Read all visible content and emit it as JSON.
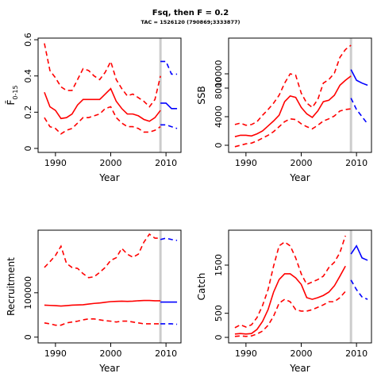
{
  "title": "Fsq, then F = 0.2",
  "subtitle": "TAC = 1526120 (790869;3333877)",
  "chart_data": [
    {
      "type": "line",
      "xlabel": "Year",
      "ylabel": "F̄",
      "ylabel_sub": "0-15",
      "xlim": [
        1986.86,
        2012.71
      ],
      "xticks": [
        1990,
        2000,
        2010
      ],
      "ylim": [
        -0.022,
        0.609
      ],
      "yticks": [
        0.0,
        0.2,
        0.4,
        0.6
      ],
      "vline": 2009,
      "vline_color": "#cccccc",
      "series": [
        {
          "color": "#ff0000",
          "linestyle": "solid",
          "x": [
            1988,
            1989,
            1990,
            1991,
            1992,
            1993,
            1994,
            1995,
            1996,
            1997,
            1998,
            1999,
            2000,
            2001,
            2002,
            2003,
            2004,
            2005,
            2006,
            2007,
            2008,
            2009
          ],
          "values": [
            0.31,
            0.23,
            0.21,
            0.165,
            0.17,
            0.19,
            0.24,
            0.27,
            0.27,
            0.27,
            0.27,
            0.3,
            0.33,
            0.26,
            0.22,
            0.19,
            0.19,
            0.18,
            0.16,
            0.15,
            0.17,
            0.21
          ]
        },
        {
          "color": "#ff0000",
          "linestyle": "dashed",
          "x": [
            1988,
            1989,
            1990,
            1991,
            1992,
            1993,
            1994,
            1995,
            1996,
            1997,
            1998,
            1999,
            2000,
            2001,
            2002,
            2003,
            2004,
            2005,
            2006,
            2007,
            2008,
            2009
          ],
          "values": [
            0.58,
            0.43,
            0.39,
            0.34,
            0.32,
            0.32,
            0.38,
            0.44,
            0.43,
            0.4,
            0.38,
            0.42,
            0.48,
            0.38,
            0.33,
            0.29,
            0.3,
            0.28,
            0.26,
            0.23,
            0.27,
            0.4
          ]
        },
        {
          "color": "#ff0000",
          "linestyle": "dashed",
          "x": [
            1988,
            1989,
            1990,
            1991,
            1992,
            1993,
            1994,
            1995,
            1996,
            1997,
            1998,
            1999,
            2000,
            2001,
            2002,
            2003,
            2004,
            2005,
            2006,
            2007,
            2008,
            2009
          ],
          "values": [
            0.17,
            0.12,
            0.11,
            0.08,
            0.1,
            0.11,
            0.14,
            0.17,
            0.17,
            0.18,
            0.19,
            0.22,
            0.23,
            0.17,
            0.14,
            0.12,
            0.12,
            0.11,
            0.09,
            0.09,
            0.1,
            0.12
          ]
        },
        {
          "color": "#0000ff",
          "linestyle": "solid",
          "x": [
            2009,
            2010,
            2011,
            2012
          ],
          "values": [
            0.25,
            0.25,
            0.22,
            0.22
          ]
        },
        {
          "color": "#0000ff",
          "linestyle": "dashed",
          "x": [
            2009,
            2010,
            2011,
            2012
          ],
          "values": [
            0.48,
            0.48,
            0.41,
            0.41
          ]
        },
        {
          "color": "#0000ff",
          "linestyle": "dashed",
          "x": [
            2009,
            2010,
            2011,
            2012
          ],
          "values": [
            0.13,
            0.13,
            0.12,
            0.11
          ]
        }
      ]
    },
    {
      "type": "line",
      "xlabel": "Year",
      "ylabel": "SSB",
      "xlim": [
        1986.86,
        2012.71
      ],
      "xticks": [
        1990,
        2000,
        2010
      ],
      "ylim": [
        -1000,
        15000
      ],
      "yticks": [
        0,
        4000,
        8000,
        10000
      ],
      "vline": 2009,
      "vline_color": "#cccccc",
      "series": [
        {
          "color": "#ff0000",
          "linestyle": "solid",
          "x": [
            1988,
            1989,
            1990,
            1991,
            1992,
            1993,
            1994,
            1995,
            1996,
            1997,
            1998,
            1999,
            2000,
            2001,
            2002,
            2003,
            2004,
            2005,
            2006,
            2007,
            2008,
            2009
          ],
          "values": [
            1200,
            1400,
            1400,
            1300,
            1600,
            2000,
            2700,
            3400,
            4200,
            6100,
            6900,
            6700,
            5300,
            4400,
            3900,
            4800,
            6100,
            6300,
            7000,
            8400,
            9100,
            9700
          ]
        },
        {
          "color": "#ff0000",
          "linestyle": "dashed",
          "x": [
            1988,
            1989,
            1990,
            1991,
            1992,
            1993,
            1994,
            1995,
            1996,
            1997,
            1998,
            1999,
            2000,
            2001,
            2002,
            2003,
            2004,
            2005,
            2006,
            2007,
            2008,
            2009
          ],
          "values": [
            2900,
            3100,
            2800,
            2900,
            3300,
            4200,
            5000,
            5900,
            7000,
            8700,
            10000,
            9800,
            7300,
            5900,
            5300,
            6400,
            8700,
            9200,
            10100,
            12300,
            13400,
            14000
          ]
        },
        {
          "color": "#ff0000",
          "linestyle": "dashed",
          "x": [
            1988,
            1989,
            1990,
            1991,
            1992,
            1993,
            1994,
            1995,
            1996,
            1997,
            1998,
            1999,
            2000,
            2001,
            2002,
            2003,
            2004,
            2005,
            2006,
            2007,
            2008,
            2009
          ],
          "values": [
            -200,
            0,
            200,
            300,
            600,
            1000,
            1400,
            1900,
            2600,
            3300,
            3700,
            3600,
            3000,
            2600,
            2300,
            2800,
            3400,
            3700,
            4100,
            4800,
            5000,
            5100
          ]
        },
        {
          "color": "#0000ff",
          "linestyle": "solid",
          "x": [
            2009,
            2010,
            2011,
            2012
          ],
          "values": [
            10600,
            9100,
            8700,
            8400
          ]
        },
        {
          "color": "#0000ff",
          "linestyle": "dashed",
          "x": [
            2009,
            2010,
            2011,
            2012
          ],
          "values": [
            6600,
            5000,
            4000,
            3000
          ]
        }
      ]
    },
    {
      "type": "line",
      "xlabel": "Year",
      "ylabel": "Recruitment",
      "xlim": [
        1986.86,
        2012.71
      ],
      "xticks": [
        1990,
        2000,
        2010
      ],
      "ylim": [
        -13000,
        241000
      ],
      "yticks": [
        0,
        100000
      ],
      "vline": 2009,
      "vline_color": "#cccccc",
      "series": [
        {
          "color": "#ff0000",
          "linestyle": "solid",
          "x": [
            1988,
            1989,
            1990,
            1991,
            1992,
            1993,
            1994,
            1995,
            1996,
            1997,
            1998,
            1999,
            2000,
            2001,
            2002,
            2003,
            2004,
            2005,
            2006,
            2007,
            2008,
            2009
          ],
          "values": [
            72000,
            71500,
            71000,
            70000,
            71000,
            72000,
            72500,
            73000,
            74500,
            76000,
            77000,
            78500,
            80000,
            80500,
            81000,
            80500,
            81000,
            82000,
            82500,
            82500,
            82000,
            82000
          ]
        },
        {
          "color": "#ff0000",
          "linestyle": "dashed",
          "x": [
            1988,
            1989,
            1990,
            1991,
            1992,
            1993,
            1994,
            1995,
            1996,
            1997,
            1998,
            1999,
            2000,
            2001,
            2002,
            2003,
            2004,
            2005,
            2006,
            2007,
            2008,
            2009
          ],
          "values": [
            157000,
            170000,
            184000,
            205000,
            166000,
            157000,
            155000,
            143000,
            134000,
            136000,
            146000,
            157000,
            173000,
            179000,
            200000,
            187000,
            180000,
            187000,
            214000,
            232000,
            223000,
            223000
          ]
        },
        {
          "color": "#ff0000",
          "linestyle": "dashed",
          "x": [
            1988,
            1989,
            1990,
            1991,
            1992,
            1993,
            1994,
            1995,
            1996,
            1997,
            1998,
            1999,
            2000,
            2001,
            2002,
            2003,
            2004,
            2005,
            2006,
            2007,
            2008,
            2009
          ],
          "values": [
            32000,
            30000,
            27000,
            27000,
            32000,
            34000,
            36000,
            39000,
            41000,
            41000,
            39000,
            37000,
            36000,
            34000,
            36000,
            36000,
            34000,
            32000,
            30000,
            30000,
            30000,
            30000
          ]
        },
        {
          "color": "#0000ff",
          "linestyle": "solid",
          "x": [
            2009,
            2010,
            2011,
            2012
          ],
          "values": [
            79000,
            79000,
            79000,
            79000
          ]
        },
        {
          "color": "#0000ff",
          "linestyle": "dashed",
          "x": [
            2009,
            2010,
            2011,
            2012
          ],
          "values": [
            220000,
            223000,
            220000,
            218000
          ]
        },
        {
          "color": "#0000ff",
          "linestyle": "dashed",
          "x": [
            2009,
            2010,
            2011,
            2012
          ],
          "values": [
            30000,
            30000,
            30000,
            29000
          ]
        }
      ]
    },
    {
      "type": "line",
      "xlabel": "Year",
      "ylabel": "Catch",
      "xlim": [
        1986.86,
        2012.71
      ],
      "xticks": [
        1990,
        2000,
        2010
      ],
      "ylim": [
        -115,
        2225
      ],
      "yticks": [
        0,
        500,
        1500
      ],
      "vline": 2009,
      "vline_color": "#cccccc",
      "series": [
        {
          "color": "#ff0000",
          "linestyle": "solid",
          "x": [
            1988,
            1989,
            1990,
            1991,
            1992,
            1993,
            1994,
            1995,
            1996,
            1997,
            1998,
            1999,
            2000,
            2001,
            2002,
            2003,
            2004,
            2005,
            2006,
            2007,
            2008
          ],
          "values": [
            70,
            80,
            70,
            80,
            165,
            330,
            575,
            940,
            1200,
            1320,
            1320,
            1235,
            1100,
            825,
            790,
            825,
            870,
            940,
            1070,
            1270,
            1480
          ]
        },
        {
          "color": "#ff0000",
          "linestyle": "dashed",
          "x": [
            1988,
            1989,
            1990,
            1991,
            1992,
            1993,
            1994,
            1995,
            1996,
            1997,
            1998,
            1999,
            2000,
            2001,
            2002,
            2003,
            2004,
            2005,
            2006,
            2007,
            2008
          ],
          "values": [
            200,
            260,
            215,
            260,
            410,
            660,
            990,
            1480,
            1900,
            1980,
            1900,
            1650,
            1320,
            1100,
            1150,
            1200,
            1270,
            1450,
            1560,
            1760,
            2110
          ]
        },
        {
          "color": "#ff0000",
          "linestyle": "dashed",
          "x": [
            1988,
            1989,
            1990,
            1991,
            1992,
            1993,
            1994,
            1995,
            1996,
            1997,
            1998,
            1999,
            2000,
            2001,
            2002,
            2003,
            2004,
            2005,
            2006,
            2007,
            2008
          ],
          "values": [
            20,
            30,
            20,
            30,
            70,
            130,
            250,
            440,
            710,
            790,
            740,
            575,
            545,
            545,
            575,
            625,
            675,
            740,
            740,
            825,
            955
          ]
        },
        {
          "color": "#0000ff",
          "linestyle": "solid",
          "x": [
            2009,
            2010,
            2011,
            2012
          ],
          "values": [
            1730,
            1900,
            1650,
            1600
          ]
        },
        {
          "color": "#0000ff",
          "linestyle": "dashed",
          "x": [
            2009,
            2010,
            2011,
            2012
          ],
          "values": [
            1190,
            990,
            840,
            790
          ]
        }
      ]
    }
  ]
}
